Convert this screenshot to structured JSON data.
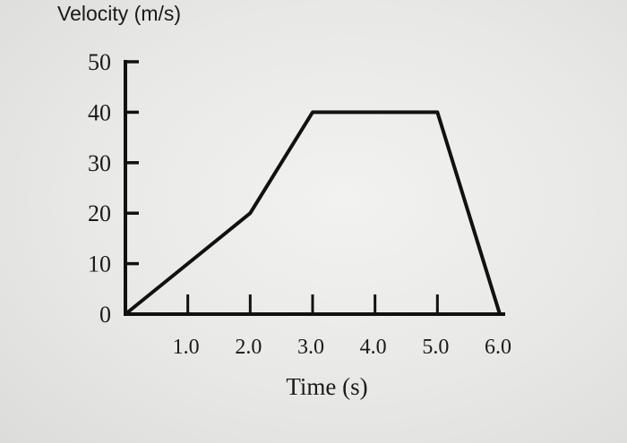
{
  "chart_data": {
    "type": "line",
    "title": "",
    "ylabel": "Velocity (m/s)",
    "xlabel": "Time (s)",
    "x_tick_labels": [
      "1.0",
      "2.0",
      "3.0",
      "4.0",
      "5.0",
      "6.0"
    ],
    "x_ticks": [
      1,
      2,
      3,
      4,
      5,
      6
    ],
    "y_tick_labels": [
      "0",
      "10",
      "20",
      "30",
      "40",
      "50"
    ],
    "y_ticks": [
      0,
      10,
      20,
      30,
      40,
      50
    ],
    "xlim": [
      0,
      6
    ],
    "ylim": [
      0,
      50
    ],
    "grid": false,
    "series": [
      {
        "x": [
          0,
          2,
          3,
          5,
          6
        ],
        "y": [
          0,
          20,
          40,
          40,
          0
        ]
      }
    ]
  }
}
